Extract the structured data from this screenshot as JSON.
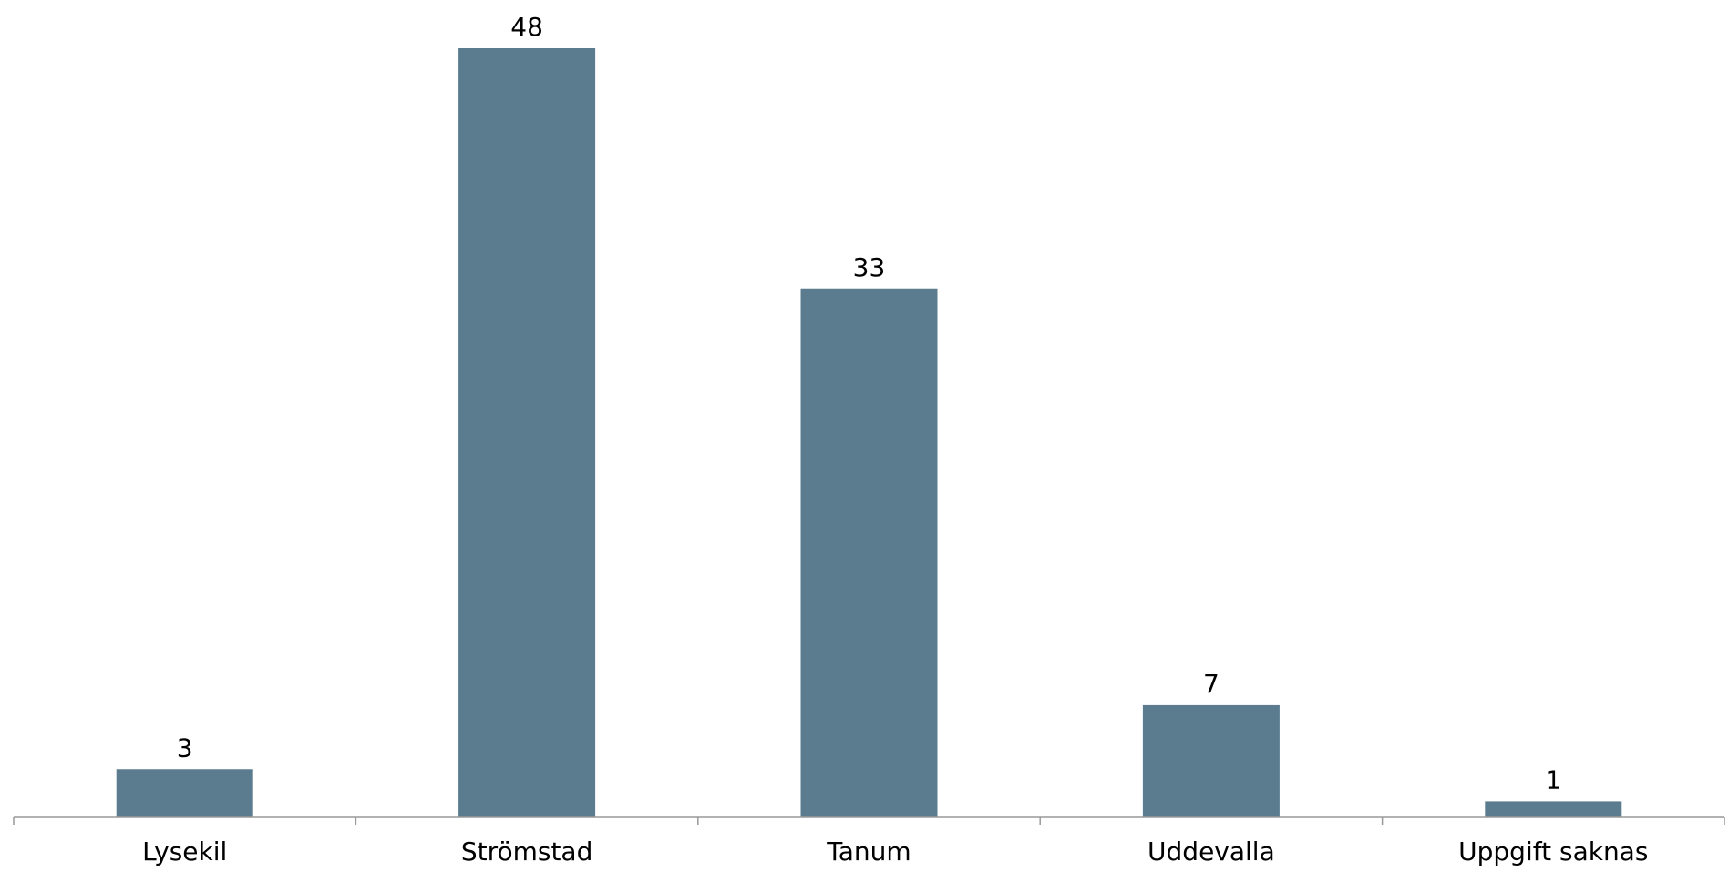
{
  "chart_data": {
    "type": "bar",
    "categories": [
      "Lysekil",
      "Strömstad",
      "Tanum",
      "Uddevalla",
      "Uppgift saknas"
    ],
    "values": [
      3,
      48,
      33,
      7,
      1
    ],
    "title": "",
    "xlabel": "",
    "ylabel": "",
    "ylim": [
      0,
      48
    ],
    "grid": false,
    "legend": "none",
    "data_labels": true,
    "colors": {
      "bar": "#5B7C8F",
      "axis": "#999999"
    }
  }
}
